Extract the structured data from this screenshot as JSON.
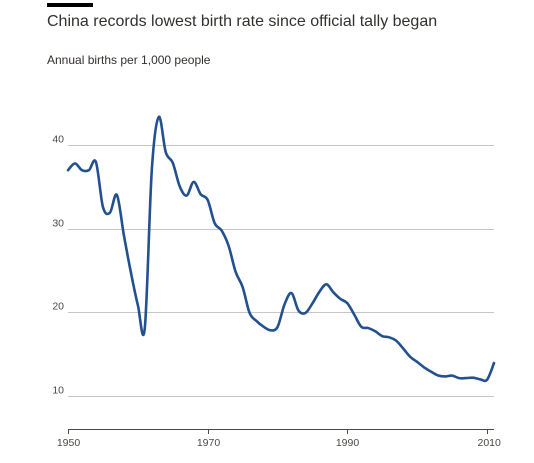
{
  "chart_data": {
    "type": "line",
    "title": "China records lowest birth rate since official tally began",
    "subtitle": "Annual births per 1,000 people",
    "xlabel": "",
    "ylabel": "",
    "xlim": [
      1950,
      2011
    ],
    "ylim": [
      6,
      46
    ],
    "x_ticks": [
      1950,
      1970,
      1990,
      2010
    ],
    "x_tick_labels": [
      "1950",
      "1970",
      "1990",
      "2010"
    ],
    "y_ticks": [
      10,
      20,
      30,
      40
    ],
    "y_tick_labels": [
      "10",
      "20",
      "30",
      "40"
    ],
    "grid": "horizontal",
    "line_color": "#23508f",
    "series": [
      {
        "x": [
          1950,
          1951,
          1952,
          1953,
          1954,
          1955,
          1956,
          1957,
          1958,
          1959,
          1960,
          1961,
          1962,
          1963,
          1964,
          1965,
          1966,
          1967,
          1968,
          1969,
          1970,
          1971,
          1972,
          1973,
          1974,
          1975,
          1976,
          1977,
          1978,
          1979,
          1980,
          1981,
          1982,
          1983,
          1984,
          1985,
          1986,
          1987,
          1988,
          1989,
          1990,
          1991,
          1992,
          1993,
          1994,
          1995,
          1996,
          1997,
          1998,
          1999,
          2000,
          2001,
          2002,
          2003,
          2004,
          2005,
          2006,
          2007,
          2008,
          2009,
          2010,
          2011
        ],
        "y": [
          37.0,
          37.8,
          37.0,
          37.0,
          37.97,
          32.6,
          31.9,
          34.03,
          29.22,
          24.78,
          20.86,
          18.13,
          37.01,
          43.37,
          39.14,
          37.88,
          35.05,
          33.96,
          35.59,
          34.11,
          33.43,
          30.65,
          29.77,
          27.93,
          24.82,
          23.01,
          19.91,
          18.93,
          18.25,
          17.82,
          18.21,
          20.91,
          22.28,
          20.19,
          19.9,
          21.04,
          22.43,
          23.33,
          22.37,
          21.58,
          21.06,
          19.68,
          18.24,
          18.09,
          17.7,
          17.12,
          16.98,
          16.57,
          15.64,
          14.64,
          14.03,
          13.38,
          12.86,
          12.41,
          12.29,
          12.4,
          12.09,
          12.1,
          12.14,
          11.95,
          11.9,
          13.9
        ]
      }
    ]
  }
}
